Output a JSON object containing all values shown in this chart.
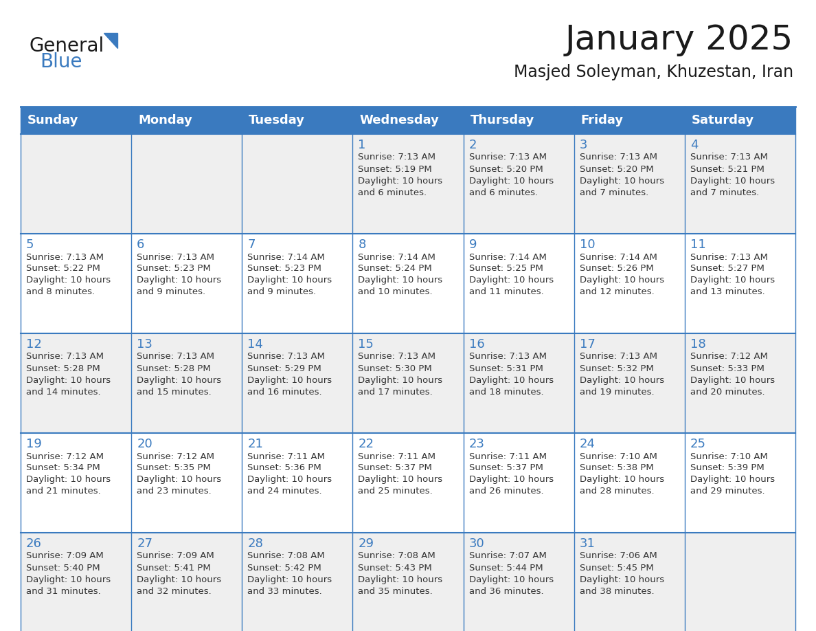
{
  "title": "January 2025",
  "subtitle": "Masjed Soleyman, Khuzestan, Iran",
  "days_of_week": [
    "Sunday",
    "Monday",
    "Tuesday",
    "Wednesday",
    "Thursday",
    "Friday",
    "Saturday"
  ],
  "header_bg": "#3a7abf",
  "header_text": "#FFFFFF",
  "row_bg": [
    "#EFEFEF",
    "#FFFFFF",
    "#EFEFEF",
    "#FFFFFF",
    "#EFEFEF"
  ],
  "cell_border": "#3a7abf",
  "title_color": "#1a1a1a",
  "subtitle_color": "#1a1a1a",
  "day_number_color": "#3a7abf",
  "cell_text_color": "#333333",
  "calendar_data": [
    [
      {
        "day": "",
        "sunrise": "",
        "sunset": "",
        "daylight": ""
      },
      {
        "day": "",
        "sunrise": "",
        "sunset": "",
        "daylight": ""
      },
      {
        "day": "",
        "sunrise": "",
        "sunset": "",
        "daylight": ""
      },
      {
        "day": "1",
        "sunrise": "7:13 AM",
        "sunset": "5:19 PM",
        "daylight": "10 hours",
        "daylight2": "and 6 minutes."
      },
      {
        "day": "2",
        "sunrise": "7:13 AM",
        "sunset": "5:20 PM",
        "daylight": "10 hours",
        "daylight2": "and 6 minutes."
      },
      {
        "day": "3",
        "sunrise": "7:13 AM",
        "sunset": "5:20 PM",
        "daylight": "10 hours",
        "daylight2": "and 7 minutes."
      },
      {
        "day": "4",
        "sunrise": "7:13 AM",
        "sunset": "5:21 PM",
        "daylight": "10 hours",
        "daylight2": "and 7 minutes."
      }
    ],
    [
      {
        "day": "5",
        "sunrise": "7:13 AM",
        "sunset": "5:22 PM",
        "daylight": "10 hours",
        "daylight2": "and 8 minutes."
      },
      {
        "day": "6",
        "sunrise": "7:13 AM",
        "sunset": "5:23 PM",
        "daylight": "10 hours",
        "daylight2": "and 9 minutes."
      },
      {
        "day": "7",
        "sunrise": "7:14 AM",
        "sunset": "5:23 PM",
        "daylight": "10 hours",
        "daylight2": "and 9 minutes."
      },
      {
        "day": "8",
        "sunrise": "7:14 AM",
        "sunset": "5:24 PM",
        "daylight": "10 hours",
        "daylight2": "and 10 minutes."
      },
      {
        "day": "9",
        "sunrise": "7:14 AM",
        "sunset": "5:25 PM",
        "daylight": "10 hours",
        "daylight2": "and 11 minutes."
      },
      {
        "day": "10",
        "sunrise": "7:14 AM",
        "sunset": "5:26 PM",
        "daylight": "10 hours",
        "daylight2": "and 12 minutes."
      },
      {
        "day": "11",
        "sunrise": "7:13 AM",
        "sunset": "5:27 PM",
        "daylight": "10 hours",
        "daylight2": "and 13 minutes."
      }
    ],
    [
      {
        "day": "12",
        "sunrise": "7:13 AM",
        "sunset": "5:28 PM",
        "daylight": "10 hours",
        "daylight2": "and 14 minutes."
      },
      {
        "day": "13",
        "sunrise": "7:13 AM",
        "sunset": "5:28 PM",
        "daylight": "10 hours",
        "daylight2": "and 15 minutes."
      },
      {
        "day": "14",
        "sunrise": "7:13 AM",
        "sunset": "5:29 PM",
        "daylight": "10 hours",
        "daylight2": "and 16 minutes."
      },
      {
        "day": "15",
        "sunrise": "7:13 AM",
        "sunset": "5:30 PM",
        "daylight": "10 hours",
        "daylight2": "and 17 minutes."
      },
      {
        "day": "16",
        "sunrise": "7:13 AM",
        "sunset": "5:31 PM",
        "daylight": "10 hours",
        "daylight2": "and 18 minutes."
      },
      {
        "day": "17",
        "sunrise": "7:13 AM",
        "sunset": "5:32 PM",
        "daylight": "10 hours",
        "daylight2": "and 19 minutes."
      },
      {
        "day": "18",
        "sunrise": "7:12 AM",
        "sunset": "5:33 PM",
        "daylight": "10 hours",
        "daylight2": "and 20 minutes."
      }
    ],
    [
      {
        "day": "19",
        "sunrise": "7:12 AM",
        "sunset": "5:34 PM",
        "daylight": "10 hours",
        "daylight2": "and 21 minutes."
      },
      {
        "day": "20",
        "sunrise": "7:12 AM",
        "sunset": "5:35 PM",
        "daylight": "10 hours",
        "daylight2": "and 23 minutes."
      },
      {
        "day": "21",
        "sunrise": "7:11 AM",
        "sunset": "5:36 PM",
        "daylight": "10 hours",
        "daylight2": "and 24 minutes."
      },
      {
        "day": "22",
        "sunrise": "7:11 AM",
        "sunset": "5:37 PM",
        "daylight": "10 hours",
        "daylight2": "and 25 minutes."
      },
      {
        "day": "23",
        "sunrise": "7:11 AM",
        "sunset": "5:37 PM",
        "daylight": "10 hours",
        "daylight2": "and 26 minutes."
      },
      {
        "day": "24",
        "sunrise": "7:10 AM",
        "sunset": "5:38 PM",
        "daylight": "10 hours",
        "daylight2": "and 28 minutes."
      },
      {
        "day": "25",
        "sunrise": "7:10 AM",
        "sunset": "5:39 PM",
        "daylight": "10 hours",
        "daylight2": "and 29 minutes."
      }
    ],
    [
      {
        "day": "26",
        "sunrise": "7:09 AM",
        "sunset": "5:40 PM",
        "daylight": "10 hours",
        "daylight2": "and 31 minutes."
      },
      {
        "day": "27",
        "sunrise": "7:09 AM",
        "sunset": "5:41 PM",
        "daylight": "10 hours",
        "daylight2": "and 32 minutes."
      },
      {
        "day": "28",
        "sunrise": "7:08 AM",
        "sunset": "5:42 PM",
        "daylight": "10 hours",
        "daylight2": "and 33 minutes."
      },
      {
        "day": "29",
        "sunrise": "7:08 AM",
        "sunset": "5:43 PM",
        "daylight": "10 hours",
        "daylight2": "and 35 minutes."
      },
      {
        "day": "30",
        "sunrise": "7:07 AM",
        "sunset": "5:44 PM",
        "daylight": "10 hours",
        "daylight2": "and 36 minutes."
      },
      {
        "day": "31",
        "sunrise": "7:06 AM",
        "sunset": "5:45 PM",
        "daylight": "10 hours",
        "daylight2": "and 38 minutes."
      },
      {
        "day": "",
        "sunrise": "",
        "sunset": "",
        "daylight": "",
        "daylight2": ""
      }
    ]
  ]
}
